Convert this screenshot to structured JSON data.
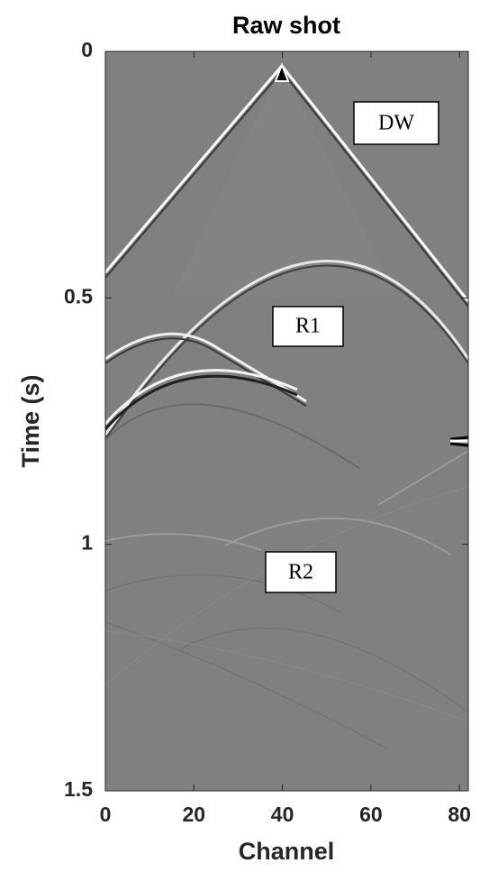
{
  "chart_data": {
    "type": "image",
    "title": "Raw shot",
    "x_label": "Channel",
    "y_label": "Time (s)",
    "xlim": [
      0,
      82
    ],
    "xticks": [
      0,
      20,
      40,
      60,
      80
    ],
    "ylim": [
      0,
      1.5
    ],
    "yticks": [
      0,
      0.5,
      1,
      1.5
    ],
    "y_reversed": true,
    "grid": false,
    "annotations": [
      "DW",
      "R1",
      "R2"
    ]
  }
}
